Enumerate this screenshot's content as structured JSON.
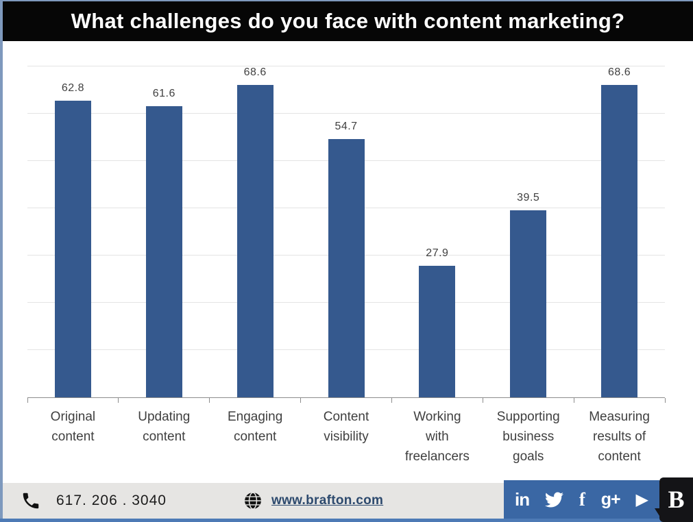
{
  "header": {
    "title": "What challenges do you face with content marketing?"
  },
  "chart_data": {
    "type": "bar",
    "title": "What challenges do you face with content marketing?",
    "categories": [
      "Original content",
      "Updating content",
      "Engaging content",
      "Content visibility",
      "Working with freelancers",
      "Supporting business goals",
      "Measuring results of content"
    ],
    "values": [
      62.8,
      61.6,
      68.6,
      54.7,
      27.9,
      39.5,
      68.6
    ],
    "data_labels": [
      "62.8",
      "61.6",
      "68.6",
      "54.7",
      "27.9",
      "39.5",
      "68.6"
    ],
    "xlabel": "",
    "ylabel": "",
    "ylim": [
      0,
      70
    ],
    "gridline_step": 10,
    "grid": true,
    "legend": false,
    "bar_color": "#35598E"
  },
  "footer": {
    "phone": "617. 206 . 3040",
    "website": "www.brafton.com",
    "linkedin_glyph": "in",
    "facebook_glyph": "f",
    "googleplus_glyph": "g+",
    "play_glyph": "▶",
    "logo_letter": "B"
  },
  "colors": {
    "bar": "#35598E",
    "title_bar_bg": "#060606",
    "title_text": "#FFFFFF",
    "border_blue": "#4D7AB5",
    "border_blue_light": "#7E99BD",
    "social_bar_bg": "#3A67A4",
    "footer_bg": "#E6E5E3",
    "link": "#2D4A6E",
    "gridline": "#E4E4E4",
    "axis": "#8C8C8C",
    "label_text": "#3F3F3F",
    "logo_bg": "#141417"
  }
}
